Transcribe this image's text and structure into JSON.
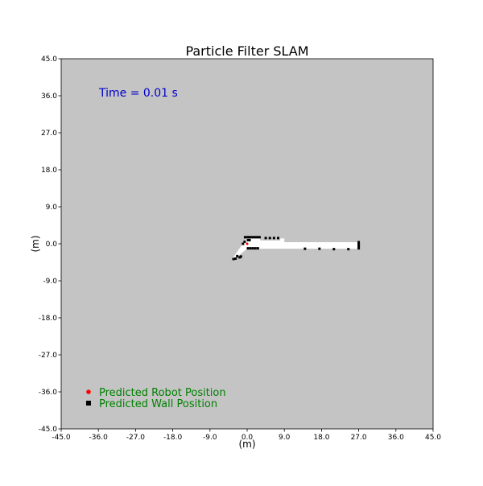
{
  "chart_data": {
    "type": "scatter",
    "title": "Particle Filter SLAM",
    "xlabel": "(m)",
    "ylabel": "(m)",
    "xlim": [
      -45.0,
      45.0
    ],
    "ylim": [
      -45.0,
      45.0
    ],
    "xticks": [
      "-45.0",
      "-36.0",
      "-27.0",
      "-18.0",
      "-9.0",
      "0.0",
      "9.0",
      "18.0",
      "27.0",
      "36.0",
      "45.0"
    ],
    "yticks": [
      "45.0",
      "36.0",
      "27.0",
      "18.0",
      "9.0",
      "0.0",
      "-9.0",
      "-18.0",
      "-27.0",
      "-36.0",
      "-45.0"
    ],
    "grid": false,
    "annotation": "Time = 0.01 s",
    "background_color": "#c4c4c4",
    "free_space_color": "#ffffff",
    "legend_position": "lower-left",
    "legend": [
      {
        "label": "Predicted Robot Position",
        "color": "#ff0000",
        "marker": "dot"
      },
      {
        "label": "Predicted Wall Position",
        "color": "#000000",
        "marker": "square"
      }
    ],
    "free_space_polygons": [
      [
        [
          -3.5,
          -3.5
        ],
        [
          0.0,
          1.5
        ],
        [
          3.0,
          1.5
        ],
        [
          3.2,
          0.8
        ],
        [
          8.0,
          0.8
        ],
        [
          8.0,
          1.3
        ],
        [
          9.0,
          1.3
        ],
        [
          9.0,
          0.4
        ],
        [
          27.0,
          0.4
        ],
        [
          27.0,
          -1.2
        ],
        [
          0.0,
          -1.2
        ],
        [
          -3.0,
          -3.6
        ]
      ]
    ],
    "robot_positions": [
      [
        0.0,
        0.0
      ]
    ],
    "wall_points": [
      [
        -0.5,
        1.6
      ],
      [
        0.0,
        1.6
      ],
      [
        0.5,
        1.6
      ],
      [
        1.0,
        1.6
      ],
      [
        1.5,
        1.6
      ],
      [
        2.0,
        1.6
      ],
      [
        2.5,
        1.6
      ],
      [
        3.0,
        1.6
      ],
      [
        0.2,
        0.9
      ],
      [
        0.6,
        0.9
      ],
      [
        0.2,
        -1.1
      ],
      [
        0.8,
        -1.1
      ],
      [
        1.4,
        -1.1
      ],
      [
        2.0,
        -1.1
      ],
      [
        2.6,
        -1.1
      ],
      [
        4.5,
        1.4
      ],
      [
        5.5,
        1.4
      ],
      [
        6.5,
        1.4
      ],
      [
        7.5,
        1.4
      ],
      [
        27.0,
        0.4
      ],
      [
        27.0,
        -0.1
      ],
      [
        27.0,
        -0.6
      ],
      [
        27.0,
        -1.1
      ],
      [
        -2.4,
        -3.0
      ],
      [
        -1.8,
        -3.3
      ],
      [
        -2.8,
        -3.6
      ],
      [
        -1.5,
        -3.1
      ],
      [
        -3.3,
        -3.7
      ],
      [
        -0.6,
        0.5
      ],
      [
        -1.0,
        0.0
      ],
      [
        14.0,
        -1.2
      ],
      [
        21.0,
        -1.3
      ],
      [
        24.5,
        -1.3
      ],
      [
        17.5,
        -1.2
      ]
    ]
  }
}
